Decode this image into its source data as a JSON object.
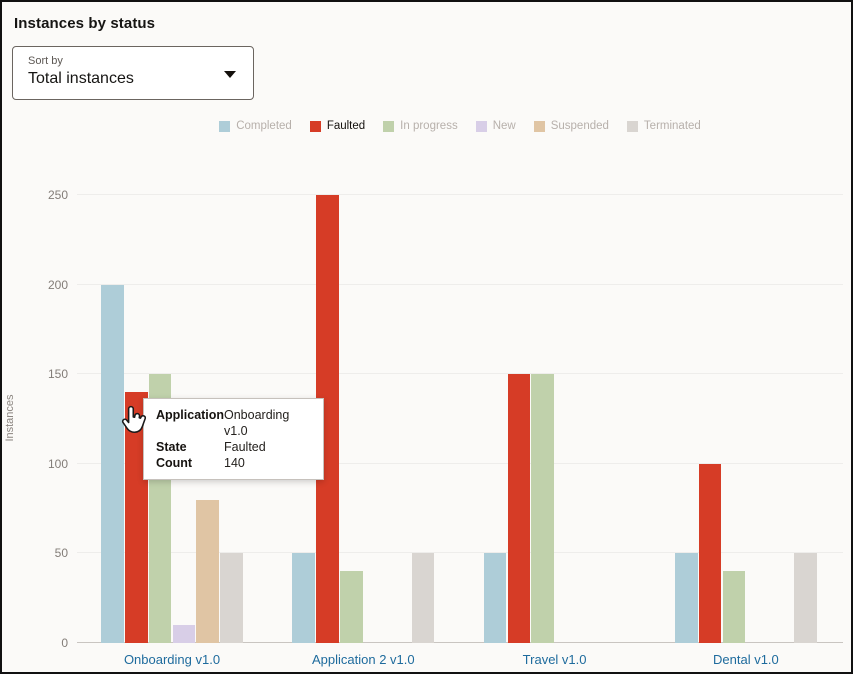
{
  "header": {
    "title": "Instances by status"
  },
  "sort_dropdown": {
    "label": "Sort by",
    "value": "Total instances"
  },
  "tooltip": {
    "rows": [
      {
        "label": "Application",
        "value": "Onboarding v1.0"
      },
      {
        "label": "State",
        "value": "Faulted"
      },
      {
        "label": "Count",
        "value": "140"
      }
    ]
  },
  "chart_data": {
    "type": "bar",
    "title": "Instances by status",
    "xlabel": "",
    "ylabel": "Instances",
    "ylim": [
      0,
      250
    ],
    "yticks": [
      0,
      50,
      100,
      150,
      200,
      250
    ],
    "grid": true,
    "legend_position": "top",
    "highlighted_series": "Faulted",
    "categories": [
      "Onboarding v1.0",
      "Application 2 v1.0",
      "Travel v1.0",
      "Dental v1.0"
    ],
    "series": [
      {
        "name": "Completed",
        "color": "#aecdd8",
        "values": [
          200,
          50,
          50,
          50
        ]
      },
      {
        "name": "Faulted",
        "color": "#d63c26",
        "values": [
          140,
          250,
          150,
          100
        ]
      },
      {
        "name": "In progress",
        "color": "#c0d1ab",
        "values": [
          150,
          40,
          150,
          40
        ]
      },
      {
        "name": "New",
        "color": "#d8cee7",
        "values": [
          10,
          0,
          0,
          0
        ]
      },
      {
        "name": "Suspended",
        "color": "#e0c5a4",
        "values": [
          80,
          0,
          0,
          0
        ]
      },
      {
        "name": "Terminated",
        "color": "#d9d5d1",
        "values": [
          50,
          50,
          0,
          50
        ]
      }
    ],
    "category_label_color": "#1e6b9d"
  }
}
